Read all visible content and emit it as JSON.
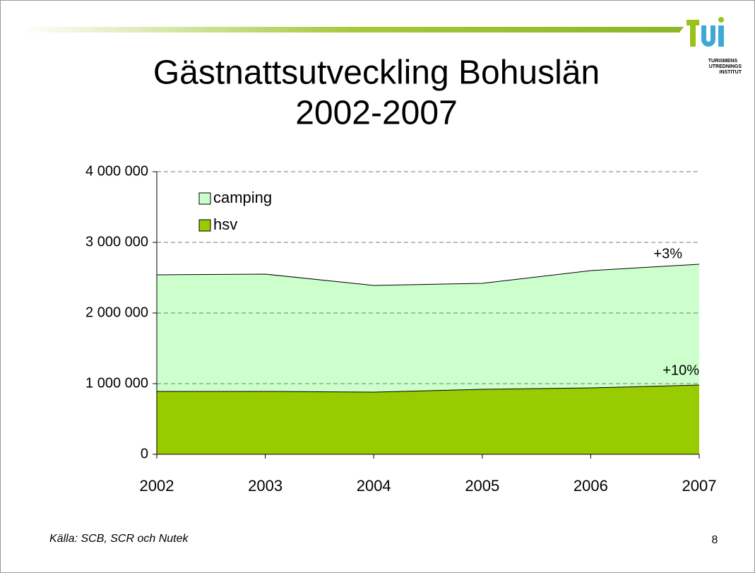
{
  "chart_data": {
    "type": "stacked_area",
    "title": [
      "Gästnattsutveckling Bohuslän",
      "2002-2007"
    ],
    "categories": [
      "2002",
      "2003",
      "2004",
      "2005",
      "2006",
      "2007"
    ],
    "series": [
      {
        "name": "hsv",
        "color": "#99cc00",
        "values": [
          890000,
          890000,
          880000,
          920000,
          940000,
          980000
        ]
      },
      {
        "name": "camping",
        "color": "#ccffcc",
        "values": [
          1650000,
          1660000,
          1510000,
          1500000,
          1660000,
          1710000
        ]
      }
    ],
    "ylim": [
      0,
      4000000
    ],
    "yticks": [
      0,
      {
        "value": 1000000,
        "label": "1 000 000"
      },
      {
        "value": 2000000,
        "label": "2 000 000"
      },
      {
        "value": 3000000,
        "label": "3 000 000"
      },
      {
        "value": 4000000,
        "label": "4 000 000"
      }
    ],
    "grid": true,
    "legend": "top-left",
    "annotations": [
      "+3%",
      "+10%"
    ],
    "source": "Källa: SCB, SCR och Nutek",
    "page_number": "8",
    "logo": {
      "mark": "TUI",
      "lines": [
        "TURISMENS",
        "UTREDNINGS",
        "INSTITUT"
      ]
    }
  }
}
